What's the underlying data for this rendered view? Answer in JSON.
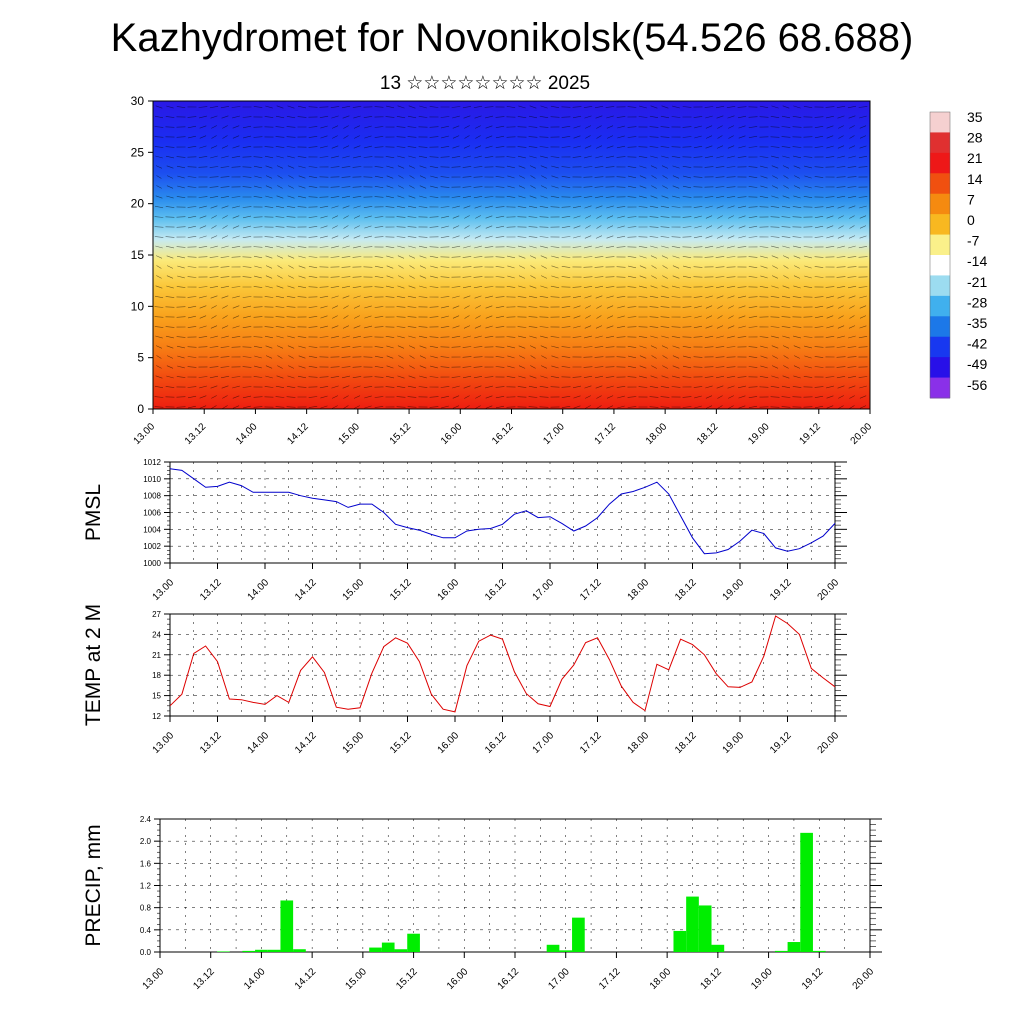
{
  "header": {
    "title": "Kazhydromet for Novonikolsk(54.526 68.688)",
    "subtitle": "13 ☆☆☆☆☆☆☆☆ 2025"
  },
  "chart_data": [
    {
      "type": "heatmap",
      "ylim": [
        0,
        30
      ],
      "yticks": [
        "0",
        "5",
        "10",
        "15",
        "20",
        "25",
        "30"
      ],
      "xticks": [
        "13.00",
        "13.12",
        "14.00",
        "14.12",
        "15.00",
        "15.12",
        "16.00",
        "16.12",
        "17.00",
        "17.12",
        "18.00",
        "18.12",
        "19.00",
        "19.12",
        "20.00"
      ],
      "colorbar": {
        "labels": [
          "35",
          "28",
          "21",
          "14",
          "7",
          "0",
          "-7",
          "-14",
          "-21",
          "-28",
          "-35",
          "-42",
          "-49",
          "-56"
        ],
        "colors": [
          "#f5d0d0",
          "#e03030",
          "#ee1818",
          "#f05010",
          "#f58a10",
          "#f8b820",
          "#faf08a",
          "#ffffff",
          "#9cdcf0",
          "#40b0ee",
          "#1c78e8",
          "#1838f0",
          "#2810e8",
          "#8a30e8"
        ]
      },
      "layers": [
        {
          "y": 0,
          "color": "#ee1d10"
        },
        {
          "y": 3,
          "color": "#f24a10"
        },
        {
          "y": 6,
          "color": "#f77e14"
        },
        {
          "y": 9,
          "color": "#f9a21c"
        },
        {
          "y": 12,
          "color": "#fbc83a"
        },
        {
          "y": 14.5,
          "color": "#fbea7a"
        },
        {
          "y": 16.5,
          "color": "#c6eaf2"
        },
        {
          "y": 18.5,
          "color": "#5ec0f0"
        },
        {
          "y": 20.5,
          "color": "#2a8cee"
        },
        {
          "y": 23,
          "color": "#1c4ef0"
        },
        {
          "y": 26,
          "color": "#1a2ef2"
        },
        {
          "y": 30,
          "color": "#2a18e6"
        }
      ]
    },
    {
      "type": "line",
      "ylabel": "PMSL",
      "ylim": [
        1000,
        1012
      ],
      "yticks": [
        "1000",
        "1002",
        "1004",
        "1006",
        "1008",
        "1010",
        "1012"
      ],
      "xticks": [
        "13.00",
        "13.12",
        "14.00",
        "14.12",
        "15.00",
        "15.12",
        "16.00",
        "16.12",
        "17.00",
        "17.12",
        "18.00",
        "18.12",
        "19.00",
        "19.12",
        "20.00"
      ],
      "color": "#0000cc",
      "x": [
        0,
        3,
        6,
        9,
        12,
        15,
        18,
        21,
        24,
        27,
        30,
        33,
        36,
        39,
        42,
        45,
        48,
        51,
        54,
        57,
        60,
        63,
        66,
        69,
        72,
        75,
        78,
        81,
        84,
        87,
        90,
        93,
        96,
        99,
        102,
        105,
        108,
        111,
        114,
        117,
        120,
        123,
        126,
        129,
        132,
        135,
        138,
        141,
        144,
        147,
        150,
        153,
        156,
        159,
        162,
        165,
        168
      ],
      "values": [
        1011.2,
        1011.0,
        1010.0,
        1009.0,
        1009.1,
        1009.6,
        1009.2,
        1008.4,
        1008.4,
        1008.4,
        1008.4,
        1008.0,
        1007.7,
        1007.5,
        1007.3,
        1006.6,
        1007.0,
        1007.0,
        1006.0,
        1004.6,
        1004.2,
        1003.9,
        1003.4,
        1003.0,
        1003.0,
        1003.8,
        1004.0,
        1004.1,
        1004.6,
        1005.8,
        1006.2,
        1005.4,
        1005.5,
        1004.7,
        1003.8,
        1004.4,
        1005.4,
        1007.0,
        1008.2,
        1008.5,
        1009.0,
        1009.6,
        1008.2,
        1005.6,
        1003.0,
        1001.1,
        1001.2,
        1001.6,
        1002.6,
        1003.9,
        1003.5,
        1001.8,
        1001.4,
        1001.7,
        1002.4,
        1003.2,
        1004.7
      ]
    },
    {
      "type": "line",
      "ylabel": "TEMP at 2 M",
      "ylim": [
        12,
        27
      ],
      "yticks": [
        "12",
        "15",
        "18",
        "21",
        "24",
        "27"
      ],
      "xticks": [
        "13.00",
        "13.12",
        "14.00",
        "14.12",
        "15.00",
        "15.12",
        "16.00",
        "16.12",
        "17.00",
        "17.12",
        "18.00",
        "18.12",
        "19.00",
        "19.12",
        "20.00"
      ],
      "color": "#dd0000",
      "x": [
        0,
        3,
        6,
        9,
        12,
        15,
        18,
        21,
        24,
        27,
        30,
        33,
        36,
        39,
        42,
        45,
        48,
        51,
        54,
        57,
        60,
        63,
        66,
        69,
        72,
        75,
        78,
        81,
        84,
        87,
        90,
        93,
        96,
        99,
        102,
        105,
        108,
        111,
        114,
        117,
        120,
        123,
        126,
        129,
        132,
        135,
        138,
        141,
        144,
        147,
        150,
        153,
        156,
        159,
        162,
        165,
        168
      ],
      "values": [
        13.5,
        15.2,
        21.2,
        22.3,
        20.0,
        14.5,
        14.4,
        14.0,
        13.7,
        15.0,
        14.0,
        18.7,
        20.7,
        18.4,
        13.3,
        13.0,
        13.2,
        18.3,
        22.2,
        23.5,
        22.7,
        20.0,
        15.2,
        13.0,
        12.6,
        19.4,
        23.0,
        23.9,
        23.3,
        18.5,
        15.3,
        13.8,
        13.4,
        17.4,
        19.5,
        22.8,
        23.5,
        20.3,
        16.4,
        14.0,
        12.8,
        19.6,
        18.8,
        23.3,
        22.5,
        21.0,
        18.2,
        16.3,
        16.2,
        17.0,
        20.8,
        26.7,
        25.6,
        24.0,
        19.0,
        17.6,
        16.3
      ]
    },
    {
      "type": "bar",
      "ylabel": "PRECIP, mm",
      "ylim": [
        0,
        2.4
      ],
      "yticks": [
        "0.0",
        "0.4",
        "0.8",
        "1.2",
        "1.6",
        "2.0",
        "2.4"
      ],
      "xticks": [
        "13.00",
        "13.12",
        "14.00",
        "14.12",
        "15.00",
        "15.12",
        "16.00",
        "16.12",
        "17.00",
        "17.12",
        "18.00",
        "18.12",
        "19.00",
        "19.12",
        "20.00"
      ],
      "color": "#00ee00",
      "x": [
        15,
        21,
        24,
        27,
        30,
        33,
        51,
        54,
        57,
        60,
        93,
        96,
        99,
        123,
        126,
        129,
        132,
        135,
        147,
        150,
        153,
        156
      ],
      "values": [
        0.01,
        0.02,
        0.04,
        0.04,
        0.93,
        0.05,
        0.08,
        0.17,
        0.05,
        0.33,
        0.13,
        0.03,
        0.62,
        0.38,
        1.0,
        0.84,
        0.13,
        0.0,
        0.02,
        0.18,
        2.15,
        0.02
      ]
    }
  ]
}
